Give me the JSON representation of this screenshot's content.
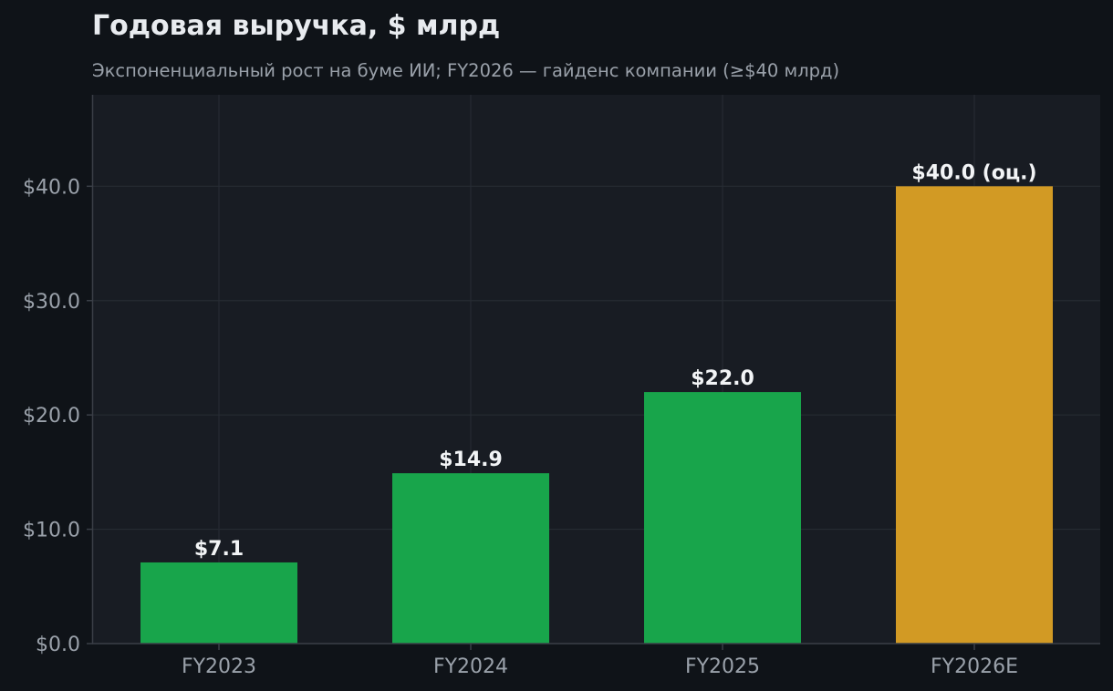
{
  "chart_data": {
    "type": "bar",
    "title": "Годовая выручка, $ млрд",
    "subtitle": "Экспоненциальный рост на буме ИИ; FY2026 — гайденс компании (≥$40 млрд)",
    "categories": [
      "FY2023",
      "FY2024",
      "FY2025",
      "FY2026E"
    ],
    "values": [
      7.1,
      14.9,
      22.0,
      40.0
    ],
    "value_labels": [
      "$7.1",
      "$14.9",
      "$22.0",
      "$40.0 (оц.)"
    ],
    "bar_kinds": [
      "actual",
      "actual",
      "actual",
      "estimate"
    ],
    "ylim": [
      0,
      48
    ],
    "yticks": [
      0,
      10,
      20,
      30,
      40
    ],
    "ytick_labels": [
      "$0.0",
      "$10.0",
      "$20.0",
      "$30.0",
      "$40.0"
    ],
    "grid": true,
    "xlabel": "",
    "ylabel": ""
  },
  "colors": {
    "page_bg": "#0f1318",
    "plot_bg": "#181c23",
    "grid": "#262b33",
    "axis": "#3a3f47",
    "title": "#e8ebef",
    "subtitle": "#9aa1aa",
    "tick_label": "#9aa1aa",
    "value_label": "#f2f4f6",
    "actual_bar": "#18a54b",
    "estimate_bar": "#d29a24"
  }
}
